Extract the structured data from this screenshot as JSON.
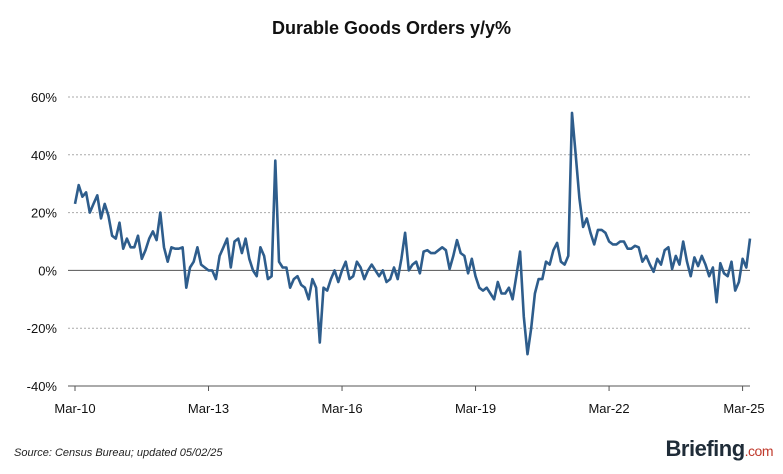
{
  "header": {
    "title": "Durable Goods Orders y/y%"
  },
  "footer": {
    "source": "Source: Census Bureau; updated 05/02/25"
  },
  "brand": {
    "name": "Briefing",
    "suffix": ".com"
  },
  "colors": {
    "line": "#2e5d8c",
    "grid": "#aaaaaa",
    "zero": "#555555"
  },
  "chart_data": {
    "type": "line",
    "title": "Durable Goods Orders y/y%",
    "xlabel": "",
    "ylabel": "",
    "y_tick_labels": [
      "60%",
      "40%",
      "20%",
      "0%",
      "-20%",
      "-40%"
    ],
    "y_ticks": [
      60,
      40,
      20,
      0,
      -20,
      -40
    ],
    "ylim": [
      -40,
      60
    ],
    "x_tick_labels": [
      "Mar-10",
      "Mar-13",
      "Mar-16",
      "Mar-19",
      "Mar-22",
      "Mar-25"
    ],
    "x_tick_index": [
      0,
      36,
      72,
      108,
      144,
      180
    ],
    "grid": "horizontal dashed",
    "series": [
      {
        "values": [
          23,
          29.5,
          25.5,
          27,
          20,
          23,
          26,
          18,
          23,
          19,
          12,
          11,
          16.5,
          7.5,
          11,
          8,
          8,
          12,
          4,
          7,
          11,
          13.5,
          10.5,
          20,
          8,
          3,
          8,
          7.5,
          7.5,
          8,
          -6,
          1,
          3,
          8,
          2,
          1,
          0,
          0,
          -3,
          5,
          8,
          11,
          1,
          10,
          11,
          6,
          11,
          4,
          0,
          -2,
          8,
          5,
          -3,
          -2,
          38,
          3,
          1,
          1,
          -6,
          -3,
          -2,
          -5,
          -6,
          -10,
          -3,
          -6,
          -25,
          -6,
          -7,
          -3,
          0,
          -4,
          0,
          3,
          -3,
          -2,
          3,
          1,
          -3,
          0,
          2,
          0,
          -2,
          0,
          -4,
          -3,
          1,
          -3,
          4,
          13,
          0,
          2,
          3,
          -1,
          6.5,
          7,
          6,
          6,
          7,
          8,
          7,
          0.5,
          5,
          10.5,
          6,
          5,
          -1,
          4,
          -2,
          -6,
          -7,
          -6,
          -8,
          -10,
          -4,
          -8,
          -8,
          -6,
          -10,
          -2,
          6.5,
          -16,
          -29,
          -20,
          -8,
          -3,
          -3,
          3,
          2,
          7,
          9.5,
          3,
          2,
          5,
          54.5,
          40,
          25,
          15,
          18,
          13,
          9,
          14,
          14,
          13,
          10,
          9,
          9,
          10,
          10,
          7.5,
          7.5,
          8.5,
          8,
          3,
          5,
          2,
          -0.5,
          4,
          2,
          7,
          8,
          0.5,
          5,
          2,
          10,
          3,
          -2,
          4.5,
          1.5,
          5,
          2,
          -2,
          1,
          -11,
          2.5,
          -1,
          -2,
          3,
          -7,
          -4,
          4,
          1,
          11
        ]
      }
    ]
  }
}
